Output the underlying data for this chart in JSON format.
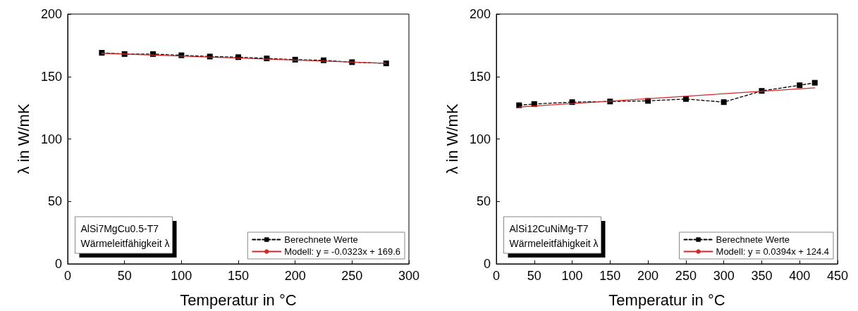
{
  "chart_data": [
    {
      "type": "line",
      "xlabel": "Temperatur in °C",
      "ylabel": "λ in W/mK",
      "xlim": [
        0,
        300
      ],
      "xticks": [
        0,
        50,
        100,
        150,
        200,
        250,
        300
      ],
      "ylim": [
        0,
        200
      ],
      "yticks": [
        0,
        50,
        100,
        150,
        200
      ],
      "grid": false,
      "legend": "bottom right",
      "annotations": [
        "AlSi7MgCu0.5-T7",
        "Wärmeleitfähigkeit λ"
      ],
      "series": [
        {
          "name": "Berechnete Werte",
          "color": "#000000",
          "marker": "square",
          "line_style": "dashed",
          "x": [
            30,
            50,
            75,
            100,
            125,
            150,
            175,
            200,
            225,
            250,
            280
          ],
          "values": [
            169,
            168,
            168,
            167,
            166,
            165.5,
            164.5,
            163.5,
            163,
            161.5,
            160.5
          ]
        },
        {
          "name": "Modell: y = -0.0323x + 169.6",
          "color": "#d62728",
          "marker": "none",
          "line_style": "solid",
          "x": [
            30,
            280
          ],
          "values": [
            168.6,
            160.6
          ]
        }
      ]
    },
    {
      "type": "line",
      "xlabel": "Temperatur in °C",
      "ylabel": "λ in W/mK",
      "xlim": [
        0,
        450
      ],
      "xticks": [
        0,
        50,
        100,
        150,
        200,
        250,
        300,
        350,
        400,
        450
      ],
      "ylim": [
        0,
        200
      ],
      "yticks": [
        0,
        50,
        100,
        150,
        200
      ],
      "grid": false,
      "legend": "bottom right",
      "annotations": [
        "AlSi12CuNiMg-T7",
        "Wärmeleitfähigkeit λ"
      ],
      "series": [
        {
          "name": "Berechnete Werte",
          "color": "#000000",
          "marker": "square",
          "line_style": "dashed",
          "x": [
            30,
            50,
            100,
            150,
            200,
            250,
            300,
            350,
            400,
            420
          ],
          "values": [
            127,
            128,
            129.5,
            130,
            130.5,
            132,
            129.5,
            138.5,
            143,
            145
          ]
        },
        {
          "name": "Modell: y = 0.0394x + 124.4",
          "color": "#d62728",
          "marker": "none",
          "line_style": "solid",
          "x": [
            30,
            420
          ],
          "values": [
            125.6,
            140.9
          ]
        }
      ]
    }
  ]
}
